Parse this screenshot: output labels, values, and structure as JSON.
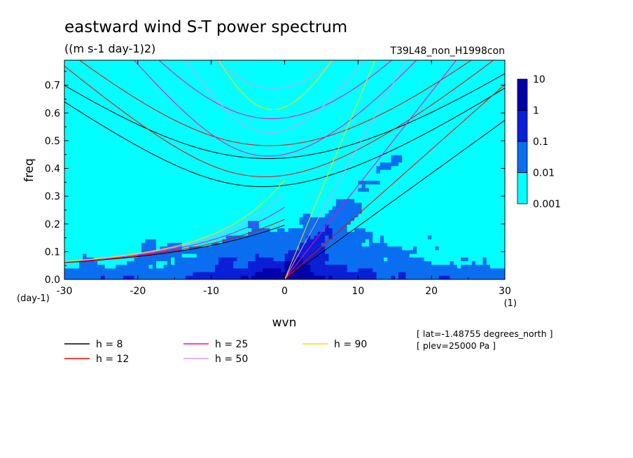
{
  "chart_data": {
    "type": "heatmap",
    "title": "eastward wind S-T power spectrum",
    "subtitle": "((m s-1 day-1)2)",
    "run_label": "T39L48_non_H1998con",
    "xlabel": "wvn",
    "ylabel": "freq",
    "x_unit": "(1)",
    "y_unit": "(day-1)",
    "xlim": [
      -30,
      30
    ],
    "ylim": [
      0,
      0.79
    ],
    "x_ticks": [
      "-30",
      "-20",
      "-10",
      "0",
      "10",
      "20",
      "30"
    ],
    "y_ticks": [
      "0.0",
      "0.1",
      "0.2",
      "0.3",
      "0.4",
      "0.5",
      "0.6",
      "0.7"
    ],
    "colorbar": {
      "levels": [
        "0.001",
        "0.01",
        "0.1",
        "1",
        "10"
      ],
      "colors": [
        "#00ffff",
        "#0a6ef0",
        "#0a1fd6",
        "#0000a8",
        "#3a10b0"
      ],
      "white_color": "#ffffff"
    },
    "dispersion_curves": [
      {
        "label": "h =  8",
        "h": 8,
        "color": "#000000"
      },
      {
        "label": "h = 12",
        "h": 12,
        "color": "#ff0000"
      },
      {
        "label": "h = 25",
        "h": 25,
        "color": "#ff00cc"
      },
      {
        "label": "h = 50",
        "h": 50,
        "color": "#dd99ee"
      },
      {
        "label": "h = 90",
        "h": 90,
        "color": "#ffdd00"
      }
    ],
    "annotations": [
      "[ lat=-1.48755 degrees_north ]",
      "[ plev=25000 Pa ]"
    ]
  }
}
